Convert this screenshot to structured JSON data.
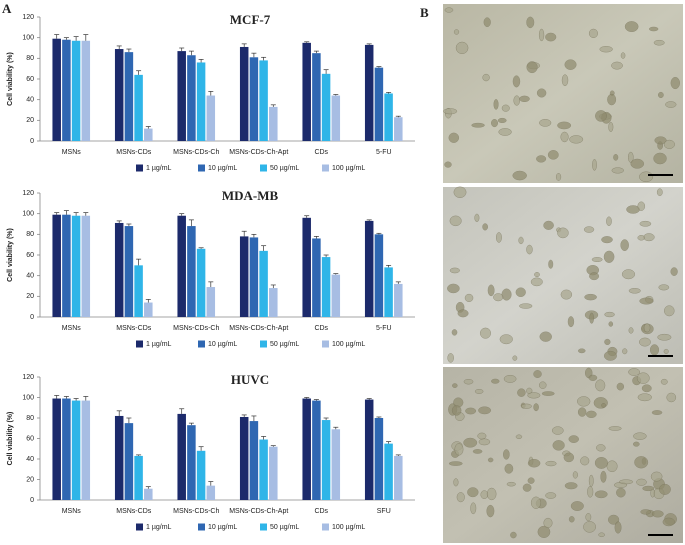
{
  "panel_labels": [
    "A",
    "B"
  ],
  "chart_data": [
    {
      "type": "bar",
      "title": "MCF-7",
      "y_label": "Cell viability (%)",
      "categories": [
        "MSNs",
        "MSNs-CDs",
        "MSNs-CDs-Ch",
        "MSNs-CDs-Ch-Apt",
        "CDs",
        "5-FU"
      ],
      "series": [
        {
          "name": "1 µg/mL",
          "color": "#1c2a6b",
          "values": [
            99,
            89,
            87,
            91,
            95,
            93
          ],
          "errors": [
            4,
            3,
            3,
            3,
            1,
            1
          ]
        },
        {
          "name": "10 µg/mL",
          "color": "#2f67b2",
          "values": [
            98,
            86,
            83,
            81,
            85,
            71
          ],
          "errors": [
            2,
            3,
            4,
            4,
            2,
            1
          ]
        },
        {
          "name": "50 µg/mL",
          "color": "#2fb5e8",
          "values": [
            97,
            64,
            76,
            78,
            65,
            46
          ],
          "errors": [
            4,
            4,
            3,
            3,
            4,
            1
          ]
        },
        {
          "name": "100 µg/mL",
          "color": "#a7bde3",
          "values": [
            97,
            12,
            44,
            33,
            44,
            23
          ],
          "errors": [
            6,
            2,
            4,
            2,
            1,
            1
          ]
        }
      ],
      "ylim": [
        0,
        120
      ],
      "yticks": [
        0,
        20,
        40,
        60,
        80,
        100,
        120
      ],
      "grid": false,
      "legend": "bottom"
    },
    {
      "type": "bar",
      "title": "MDA-MB",
      "y_label": "Cell viability (%)",
      "categories": [
        "MSNs",
        "MSNs-CDs",
        "MSNs-CDs-Ch",
        "MSNs-CDs-Ch-Apt",
        "CDs",
        "5-FU"
      ],
      "series": [
        {
          "name": "1 µg/mL",
          "color": "#1c2a6b",
          "values": [
            99,
            91,
            98,
            78,
            96,
            93
          ],
          "errors": [
            2,
            2,
            2,
            5,
            2,
            1
          ]
        },
        {
          "name": "10 µg/mL",
          "color": "#2f67b2",
          "values": [
            99,
            88,
            88,
            77,
            76,
            80
          ],
          "errors": [
            4,
            2,
            6,
            3,
            2,
            1
          ]
        },
        {
          "name": "50 µg/mL",
          "color": "#2fb5e8",
          "values": [
            98,
            50,
            66,
            64,
            58,
            48
          ],
          "errors": [
            3,
            6,
            1,
            5,
            2,
            2
          ]
        },
        {
          "name": "100 µg/mL",
          "color": "#a7bde3",
          "values": [
            98,
            14,
            29,
            28,
            41,
            32
          ],
          "errors": [
            3,
            3,
            5,
            3,
            1,
            2
          ]
        }
      ],
      "ylim": [
        0,
        120
      ],
      "yticks": [
        0,
        20,
        40,
        60,
        80,
        100,
        120
      ],
      "grid": false,
      "legend": "bottom"
    },
    {
      "type": "bar",
      "title": "HUVC",
      "y_label": "Cell viability (%)",
      "categories": [
        "MSNs",
        "MSNs-CDs",
        "MSNs-CDs-Ch",
        "MSNs-CDs-Ch-Apt",
        "CDs",
        "SFU"
      ],
      "series": [
        {
          "name": "1 µg/mL",
          "color": "#1c2a6b",
          "values": [
            99,
            82,
            84,
            81,
            99,
            98
          ],
          "errors": [
            3,
            5,
            5,
            2,
            1,
            1
          ]
        },
        {
          "name": "10 µg/mL",
          "color": "#2f67b2",
          "values": [
            99,
            75,
            73,
            77,
            97,
            80
          ],
          "errors": [
            2,
            5,
            2,
            5,
            1,
            1
          ]
        },
        {
          "name": "50 µg/mL",
          "color": "#2fb5e8",
          "values": [
            97,
            43,
            48,
            59,
            78,
            55
          ],
          "errors": [
            2,
            1,
            4,
            3,
            2,
            2
          ]
        },
        {
          "name": "100 µg/mL",
          "color": "#a7bde3",
          "values": [
            97,
            11,
            14,
            52,
            69,
            43
          ],
          "errors": [
            4,
            2,
            4,
            1,
            2,
            1
          ]
        }
      ],
      "ylim": [
        0,
        120
      ],
      "yticks": [
        0,
        20,
        40,
        60,
        80,
        100,
        120
      ],
      "grid": false,
      "legend": "bottom"
    }
  ]
}
